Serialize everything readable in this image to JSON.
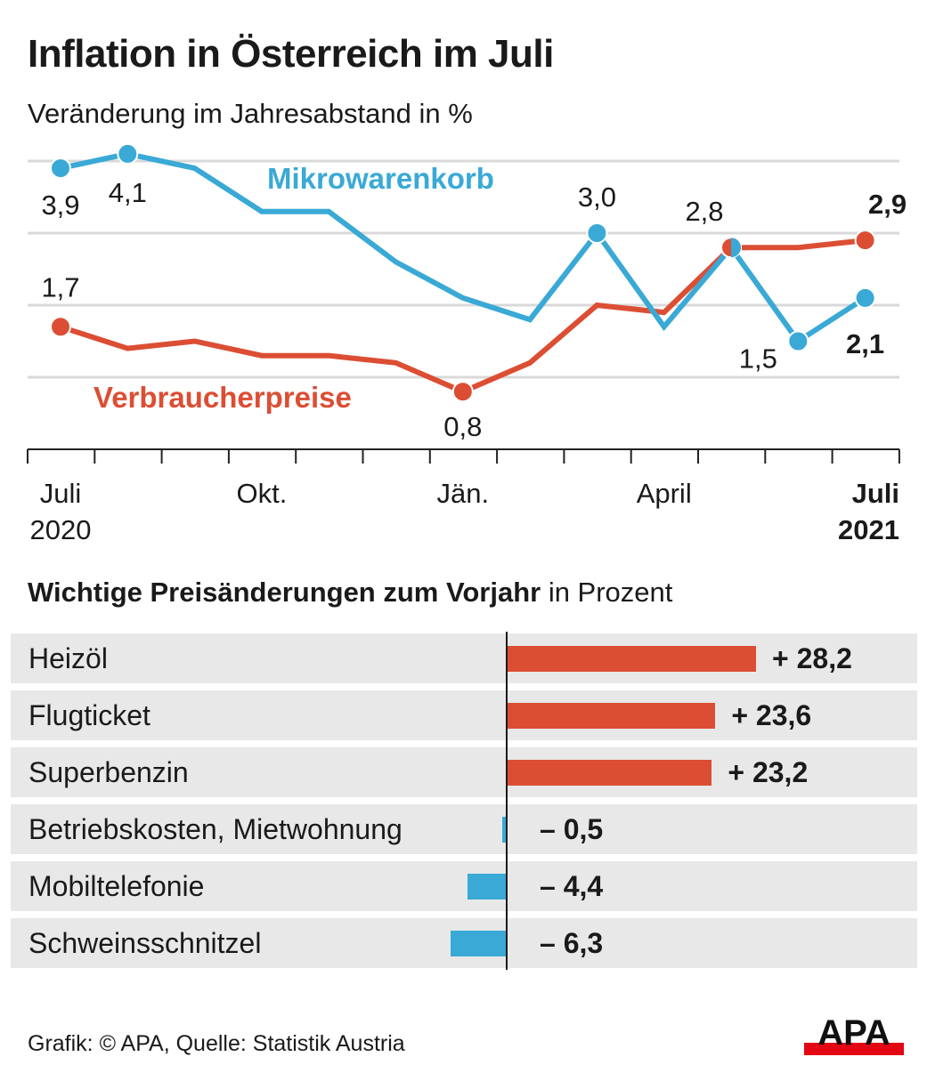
{
  "title": "Inflation in Österreich im Juli",
  "subtitle": "Veränderung im Jahresabstand in %",
  "chart_data": [
    {
      "type": "line",
      "x": [
        "Jul 2020",
        "Aug 2020",
        "Sep 2020",
        "Okt 2020",
        "Nov 2020",
        "Dez 2020",
        "Jän 2021",
        "Feb 2021",
        "Mär 2021",
        "Apr 2021",
        "Mai 2021",
        "Jun 2021",
        "Jul 2021"
      ],
      "x_tick_labels": [
        {
          "i": 0,
          "line1": "Juli",
          "line2": "2020",
          "bold": false
        },
        {
          "i": 3,
          "line1": "Okt.",
          "line2": "",
          "bold": false
        },
        {
          "i": 6,
          "line1": "Jän.",
          "line2": "",
          "bold": false
        },
        {
          "i": 9,
          "line1": "April",
          "line2": "",
          "bold": false
        },
        {
          "i": 12,
          "line1": "Juli",
          "line2": "2021",
          "bold": true
        }
      ],
      "ylim": [
        0,
        4.3
      ],
      "gridlines": [
        1,
        2,
        3,
        4
      ],
      "grid": true,
      "series": [
        {
          "name": "Mikrowarenkorb",
          "color": "#3aa9d6",
          "values": [
            3.9,
            4.1,
            3.9,
            3.3,
            3.3,
            2.6,
            2.1,
            1.8,
            3.0,
            1.7,
            2.8,
            1.5,
            2.1
          ],
          "markers": [
            0,
            1,
            8,
            10,
            11,
            12
          ],
          "labels": [
            {
              "i": 0,
              "text": "3,9",
              "bold": false
            },
            {
              "i": 1,
              "text": "4,1",
              "bold": false
            },
            {
              "i": 8,
              "text": "3,0",
              "bold": false
            },
            {
              "i": 11,
              "text": "1,5",
              "bold": false
            },
            {
              "i": 12,
              "text": "2,1",
              "bold": true
            }
          ]
        },
        {
          "name": "Verbraucherpreise",
          "color": "#dc4e34",
          "values": [
            1.7,
            1.4,
            1.5,
            1.3,
            1.3,
            1.2,
            0.8,
            1.2,
            2.0,
            1.9,
            2.8,
            2.8,
            2.9
          ],
          "markers": [
            0,
            6,
            10,
            12
          ],
          "labels": [
            {
              "i": 0,
              "text": "1,7",
              "bold": false
            },
            {
              "i": 6,
              "text": "0,8",
              "bold": false
            },
            {
              "i": 10,
              "text": "2,8",
              "bold": false
            },
            {
              "i": 12,
              "text": "2,9",
              "bold": true
            }
          ]
        }
      ]
    },
    {
      "type": "bar",
      "orientation": "horizontal",
      "title_bold": "Wichtige Preisänderungen zum Vorjahr",
      "title_rest": " in Prozent",
      "categories": [
        "Heizöl",
        "Flugticket",
        "Superbenzin",
        "Betriebskosten, Mietwohnung",
        "Mobiltelefonie",
        "Schweinsschnitzel"
      ],
      "values": [
        28.2,
        23.6,
        23.2,
        -0.5,
        -4.4,
        -6.3
      ],
      "value_labels": [
        "+ 28,2",
        "+ 23,6",
        "+ 23,2",
        "– 0,5",
        "– 4,4",
        "– 6,3"
      ],
      "positive_color": "#dc4e34",
      "negative_color": "#3aa9d6"
    }
  ],
  "source": "Grafik: © APA, Quelle: Statistik Austria",
  "logo": {
    "text": "APA",
    "color_bar": "#e30613"
  }
}
